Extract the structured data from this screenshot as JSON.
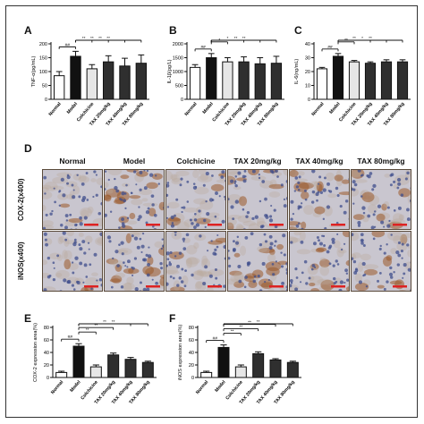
{
  "colors": {
    "bar_normal": "#ffffff",
    "bar_model": "#111111",
    "bar_colchicine": "#e6e6e6",
    "bar_tax": "#2f2f2f",
    "stain_bg": "#c9c6cf",
    "stain_brown": "#9a5a2a",
    "stain_nucleus": "#3f4d8c"
  },
  "panels": {
    "A": "A",
    "B": "B",
    "C": "C",
    "D": "D",
    "E": "E",
    "F": "F"
  },
  "micro": {
    "columns": [
      "Normal",
      "Model",
      "Colchicine",
      "TAX 20mg/kg",
      "TAX 40mg/kg",
      "TAX 80mg/kg"
    ],
    "rows": [
      "COX-2(x400)",
      "iNOS(x400)"
    ]
  },
  "chart_data": [
    {
      "id": "A",
      "type": "bar",
      "categories": [
        "Normal",
        "Model",
        "Colchicine",
        "TAX 20mg/kg",
        "TAX 40mg/kg",
        "TAX 80mg/kg"
      ],
      "values": [
        85,
        155,
        110,
        135,
        120,
        130
      ],
      "errors": [
        15,
        18,
        15,
        22,
        28,
        30
      ],
      "ylabel": "TNF-α(pg/mL)",
      "ylim": [
        0,
        200
      ],
      "yticks": [
        "0",
        "50",
        "100",
        "150",
        "200"
      ],
      "annotations": [
        "##",
        "**",
        "**",
        "**",
        "**"
      ]
    },
    {
      "id": "B",
      "type": "bar",
      "categories": [
        "Normal",
        "Model",
        "Colchicine",
        "TAX 20mg/kg",
        "TAX 40mg/kg",
        "TAX 80mg/kg"
      ],
      "values": [
        1150,
        1500,
        1350,
        1350,
        1280,
        1300
      ],
      "errors": [
        100,
        150,
        150,
        180,
        220,
        250
      ],
      "ylabel": "IL-1β(pg/L)",
      "ylim": [
        0,
        2000
      ],
      "yticks": [
        "0",
        "500",
        "1000",
        "1500",
        "2000"
      ],
      "annotations": [
        "##",
        "*",
        "*",
        "**",
        "**"
      ]
    },
    {
      "id": "C",
      "type": "bar",
      "categories": [
        "Normal",
        "Model",
        "Colchicine",
        "TAX 20mg/kg",
        "TAX 40mg/kg",
        "TAX 80mg/kg"
      ],
      "values": [
        22,
        31,
        27,
        26,
        27,
        27
      ],
      "errors": [
        1,
        2,
        1,
        1,
        1.5,
        1.5
      ],
      "ylabel": "IL-6(ng/mL)",
      "ylim": [
        0,
        40
      ],
      "yticks": [
        "0",
        "10",
        "20",
        "30",
        "40"
      ],
      "annotations": [
        "##",
        "**",
        "**",
        "*",
        "**"
      ]
    },
    {
      "id": "E",
      "type": "bar",
      "categories": [
        "Normal",
        "Model",
        "Colchicine",
        "TAX 20mg/kg",
        "TAX 40mg/kg",
        "TAX 80mg/kg"
      ],
      "values": [
        8,
        50,
        17,
        36,
        29,
        24
      ],
      "errors": [
        2,
        4,
        3,
        3,
        3,
        2
      ],
      "ylabel": "COX-2 expression area(%)",
      "ylim": [
        0,
        80
      ],
      "yticks": [
        "0",
        "20",
        "40",
        "60",
        "80"
      ],
      "annotations": [
        "##",
        "**",
        "**",
        "**",
        "**"
      ]
    },
    {
      "id": "F",
      "type": "bar",
      "categories": [
        "Normal",
        "Model",
        "Colchicine",
        "TAX 20mg/kg",
        "TAX 40mg/kg",
        "TAX 80mg/kg"
      ],
      "values": [
        8,
        48,
        17,
        38,
        28,
        24
      ],
      "errors": [
        2,
        4,
        3,
        3,
        2,
        2
      ],
      "ylabel": "iNOS expression area(%)",
      "ylim": [
        0,
        80
      ],
      "yticks": [
        "0",
        "20",
        "40",
        "60",
        "80"
      ],
      "annotations": [
        "##",
        "**",
        "**",
        "**",
        "**"
      ]
    }
  ]
}
